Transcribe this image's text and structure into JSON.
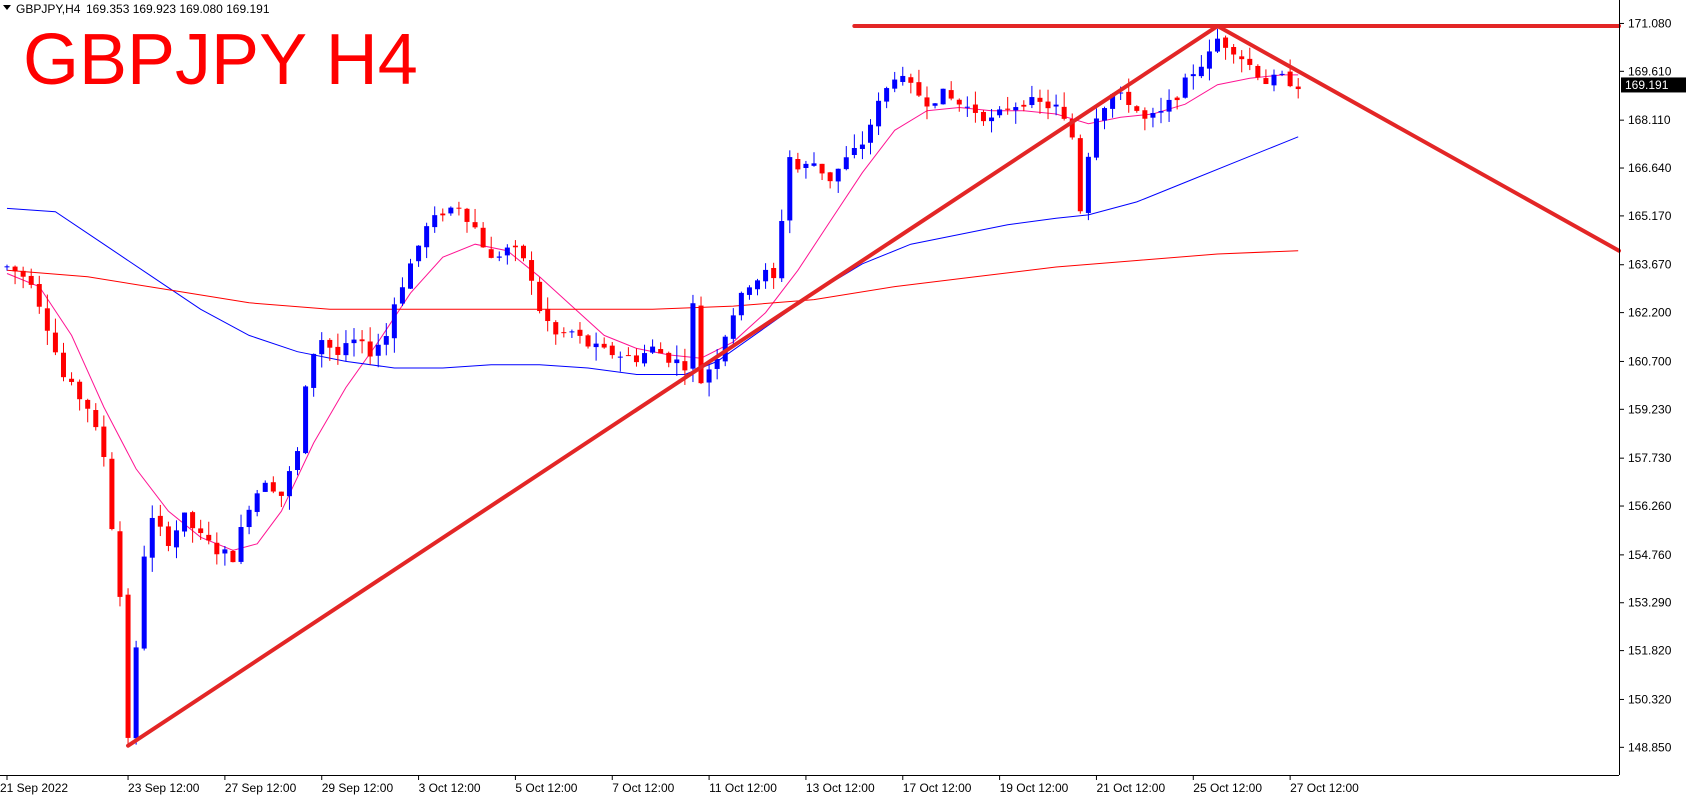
{
  "header": {
    "symbol_tf": "GBPJPY,H4",
    "ohlc": "169.353 169.923 169.080 169.191"
  },
  "overlay_title": "GBPJPY H4",
  "chart_data": {
    "type": "candlestick",
    "symbol": "GBPJPY",
    "timeframe": "H4",
    "price_axis": {
      "range": [
        148.0,
        171.8
      ],
      "ticks": [
        "171.080",
        "169.610",
        "168.110",
        "166.640",
        "165.170",
        "163.670",
        "162.200",
        "160.700",
        "159.230",
        "157.730",
        "156.260",
        "154.760",
        "153.290",
        "151.820",
        "150.320",
        "148.850"
      ],
      "current_price": "169.191"
    },
    "time_axis": {
      "bar_count": 200,
      "labels": [
        {
          "text": "21 Sep 2022",
          "bar": 0
        },
        {
          "text": "23 Sep 12:00",
          "bar": 15
        },
        {
          "text": "27 Sep 12:00",
          "bar": 27
        },
        {
          "text": "29 Sep 12:00",
          "bar": 39
        },
        {
          "text": "3 Oct 12:00",
          "bar": 51
        },
        {
          "text": "5 Oct 12:00",
          "bar": 63
        },
        {
          "text": "7 Oct 12:00",
          "bar": 75
        },
        {
          "text": "11 Oct 12:00",
          "bar": 87
        },
        {
          "text": "13 Oct 12:00",
          "bar": 99
        },
        {
          "text": "17 Oct 12:00",
          "bar": 111
        },
        {
          "text": "19 Oct 12:00",
          "bar": 123
        },
        {
          "text": "21 Oct 12:00",
          "bar": 135
        },
        {
          "text": "25 Oct 12:00",
          "bar": 147
        },
        {
          "text": "27 Oct 12:00",
          "bar": 159
        }
      ]
    },
    "price_path": [
      [
        0,
        163.6
      ],
      [
        3,
        163.2
      ],
      [
        5,
        161.8
      ],
      [
        7,
        160.2
      ],
      [
        10,
        159.3
      ],
      [
        12,
        157.8
      ],
      [
        14,
        153.5
      ],
      [
        15,
        149.2
      ],
      [
        16,
        151.8
      ],
      [
        17,
        154.8
      ],
      [
        18,
        155.8
      ],
      [
        20,
        155.2
      ],
      [
        22,
        155.9
      ],
      [
        24,
        155.3
      ],
      [
        26,
        154.9
      ],
      [
        28,
        154.7
      ],
      [
        30,
        156.3
      ],
      [
        32,
        157.1
      ],
      [
        34,
        156.6
      ],
      [
        36,
        157.9
      ],
      [
        37,
        159.8
      ],
      [
        38,
        161.0
      ],
      [
        39,
        161.4
      ],
      [
        41,
        160.9
      ],
      [
        43,
        161.3
      ],
      [
        45,
        161.0
      ],
      [
        47,
        161.5
      ],
      [
        48,
        162.5
      ],
      [
        50,
        163.7
      ],
      [
        52,
        164.8
      ],
      [
        54,
        165.3
      ],
      [
        56,
        165.5
      ],
      [
        58,
        164.8
      ],
      [
        60,
        163.8
      ],
      [
        62,
        164.2
      ],
      [
        64,
        163.9
      ],
      [
        66,
        162.3
      ],
      [
        68,
        161.5
      ],
      [
        70,
        161.6
      ],
      [
        72,
        161.2
      ],
      [
        74,
        161.0
      ],
      [
        76,
        160.9
      ],
      [
        78,
        160.8
      ],
      [
        80,
        161.1
      ],
      [
        82,
        160.8
      ],
      [
        84,
        160.6
      ],
      [
        85,
        162.4
      ],
      [
        86,
        160.1
      ],
      [
        88,
        160.9
      ],
      [
        90,
        162.2
      ],
      [
        92,
        163.1
      ],
      [
        94,
        163.4
      ],
      [
        95,
        163.2
      ],
      [
        96,
        165.1
      ],
      [
        97,
        167.0
      ],
      [
        98,
        166.6
      ],
      [
        100,
        166.8
      ],
      [
        102,
        166.3
      ],
      [
        104,
        166.9
      ],
      [
        106,
        167.4
      ],
      [
        108,
        168.6
      ],
      [
        110,
        169.5
      ],
      [
        112,
        169.1
      ],
      [
        114,
        168.7
      ],
      [
        116,
        168.9
      ],
      [
        118,
        168.6
      ],
      [
        120,
        168.4
      ],
      [
        122,
        168.1
      ],
      [
        124,
        168.5
      ],
      [
        126,
        168.7
      ],
      [
        128,
        168.6
      ],
      [
        130,
        168.5
      ],
      [
        132,
        167.6
      ],
      [
        133,
        165.4
      ],
      [
        134,
        167.1
      ],
      [
        135,
        168.3
      ],
      [
        137,
        168.9
      ],
      [
        139,
        168.7
      ],
      [
        141,
        168.1
      ],
      [
        143,
        168.3
      ],
      [
        145,
        168.9
      ],
      [
        147,
        169.6
      ],
      [
        149,
        170.1
      ],
      [
        150,
        170.6
      ],
      [
        152,
        170.3
      ],
      [
        154,
        169.8
      ],
      [
        156,
        169.3
      ],
      [
        158,
        169.4
      ],
      [
        160,
        169.2
      ]
    ],
    "series": [
      {
        "name": "",
        "color": "#ff1493",
        "width": 1,
        "points": [
          [
            0,
            163.4
          ],
          [
            4,
            163.0
          ],
          [
            8,
            161.5
          ],
          [
            12,
            159.3
          ],
          [
            16,
            157.4
          ],
          [
            20,
            156.1
          ],
          [
            24,
            155.3
          ],
          [
            28,
            154.9
          ],
          [
            31,
            155.1
          ],
          [
            34,
            156.1
          ],
          [
            38,
            158.2
          ],
          [
            42,
            159.9
          ],
          [
            46,
            161.3
          ],
          [
            50,
            162.8
          ],
          [
            54,
            163.9
          ],
          [
            58,
            164.3
          ],
          [
            62,
            164.1
          ],
          [
            66,
            163.3
          ],
          [
            70,
            162.4
          ],
          [
            74,
            161.5
          ],
          [
            78,
            161.1
          ],
          [
            82,
            160.9
          ],
          [
            86,
            160.8
          ],
          [
            90,
            161.3
          ],
          [
            94,
            162.2
          ],
          [
            98,
            163.5
          ],
          [
            102,
            165.0
          ],
          [
            106,
            166.5
          ],
          [
            110,
            167.8
          ],
          [
            114,
            168.4
          ],
          [
            118,
            168.5
          ],
          [
            122,
            168.4
          ],
          [
            126,
            168.4
          ],
          [
            130,
            168.3
          ],
          [
            134,
            168.0
          ],
          [
            138,
            168.2
          ],
          [
            142,
            168.3
          ],
          [
            146,
            168.6
          ],
          [
            150,
            169.2
          ],
          [
            154,
            169.4
          ],
          [
            158,
            169.5
          ],
          [
            160,
            169.5
          ]
        ]
      },
      {
        "name": "",
        "color": "#0000ff",
        "width": 1,
        "points": [
          [
            0,
            165.4
          ],
          [
            6,
            165.3
          ],
          [
            12,
            164.3
          ],
          [
            18,
            163.3
          ],
          [
            24,
            162.3
          ],
          [
            30,
            161.5
          ],
          [
            36,
            161.0
          ],
          [
            42,
            160.7
          ],
          [
            48,
            160.5
          ],
          [
            54,
            160.5
          ],
          [
            60,
            160.6
          ],
          [
            66,
            160.6
          ],
          [
            72,
            160.5
          ],
          [
            78,
            160.3
          ],
          [
            84,
            160.3
          ],
          [
            88,
            160.7
          ],
          [
            92,
            161.4
          ],
          [
            96,
            162.1
          ],
          [
            100,
            162.8
          ],
          [
            106,
            163.7
          ],
          [
            112,
            164.3
          ],
          [
            118,
            164.6
          ],
          [
            124,
            164.9
          ],
          [
            130,
            165.1
          ],
          [
            134,
            165.2
          ],
          [
            140,
            165.6
          ],
          [
            146,
            166.2
          ],
          [
            152,
            166.8
          ],
          [
            158,
            167.4
          ],
          [
            160,
            167.6
          ]
        ]
      },
      {
        "name": "",
        "color": "#ff0000",
        "width": 1,
        "points": [
          [
            0,
            163.5
          ],
          [
            10,
            163.3
          ],
          [
            20,
            162.9
          ],
          [
            30,
            162.5
          ],
          [
            40,
            162.3
          ],
          [
            50,
            162.3
          ],
          [
            60,
            162.3
          ],
          [
            70,
            162.3
          ],
          [
            80,
            162.3
          ],
          [
            90,
            162.4
          ],
          [
            100,
            162.6
          ],
          [
            110,
            163.0
          ],
          [
            120,
            163.3
          ],
          [
            130,
            163.6
          ],
          [
            140,
            163.8
          ],
          [
            150,
            164.0
          ],
          [
            160,
            164.1
          ]
        ]
      }
    ],
    "trendlines": [
      {
        "from": [
          15,
          148.9
        ],
        "to": [
          150,
          171.0
        ],
        "color": "#e32626"
      },
      {
        "from": [
          150,
          171.0
        ],
        "to": [
          200,
          164.1
        ],
        "color": "#e32626"
      },
      {
        "from": [
          105,
          171.0
        ],
        "to": [
          200,
          171.0
        ],
        "color": "#e32626"
      }
    ],
    "colors": {
      "bull": "#0000ff",
      "bear": "#ff0000",
      "trend": "#e32626",
      "current_price_bg": "#000000"
    }
  }
}
